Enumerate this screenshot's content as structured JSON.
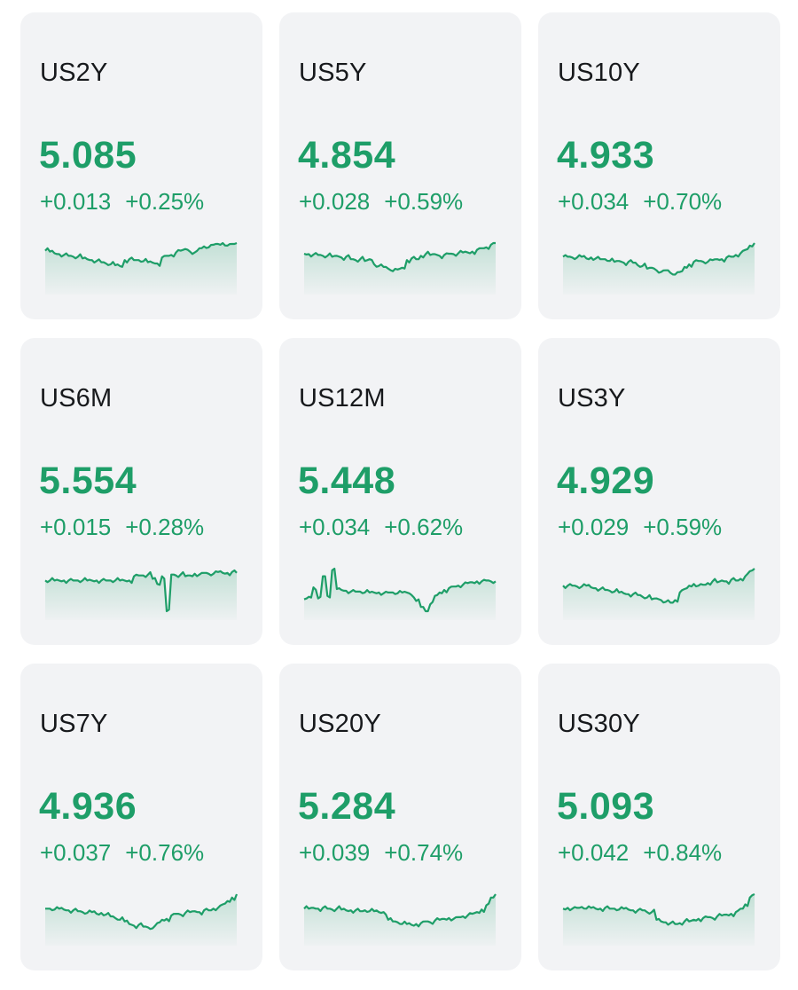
{
  "accent_color": "#1e9e68",
  "cards": [
    {
      "symbol": "US2Y",
      "price": "5.085",
      "change": "+0.013",
      "change_pct": "+0.25%",
      "spark": [
        0.82,
        0.8,
        0.76,
        0.74,
        0.72,
        0.7,
        0.68,
        0.68,
        0.64,
        0.62,
        0.6,
        0.58,
        0.55,
        0.52,
        0.5,
        0.48,
        0.46,
        0.6,
        0.62,
        0.6,
        0.6,
        0.57,
        0.55,
        0.54,
        0.52,
        0.66,
        0.7,
        0.72,
        0.78,
        0.82,
        0.86,
        0.8,
        0.78,
        0.88,
        0.92,
        0.9,
        0.96,
        0.98,
        1.0,
        0.94,
        0.98,
        1.0
      ]
    },
    {
      "symbol": "US5Y",
      "price": "4.854",
      "change": "+0.028",
      "change_pct": "+0.59%",
      "spark": [
        0.75,
        0.74,
        0.73,
        0.72,
        0.7,
        0.7,
        0.68,
        0.7,
        0.66,
        0.68,
        0.62,
        0.6,
        0.62,
        0.58,
        0.62,
        0.5,
        0.46,
        0.44,
        0.4,
        0.34,
        0.38,
        0.42,
        0.6,
        0.64,
        0.62,
        0.7,
        0.74,
        0.72,
        0.74,
        0.7,
        0.72,
        0.75,
        0.74,
        0.76,
        0.78,
        0.78,
        0.8,
        0.84,
        0.88,
        0.9,
        0.96,
        1.0
      ]
    },
    {
      "symbol": "US10Y",
      "price": "4.933",
      "change": "+0.034",
      "change_pct": "+0.70%",
      "spark": [
        0.68,
        0.68,
        0.66,
        0.66,
        0.68,
        0.64,
        0.66,
        0.64,
        0.62,
        0.62,
        0.58,
        0.56,
        0.58,
        0.54,
        0.56,
        0.54,
        0.48,
        0.46,
        0.4,
        0.42,
        0.36,
        0.32,
        0.36,
        0.3,
        0.26,
        0.32,
        0.44,
        0.5,
        0.56,
        0.58,
        0.56,
        0.56,
        0.6,
        0.62,
        0.62,
        0.66,
        0.68,
        0.72,
        0.76,
        0.84,
        0.94,
        1.0
      ]
    },
    {
      "symbol": "US6M",
      "price": "5.554",
      "change": "+0.015",
      "change_pct": "+0.28%",
      "spark": [
        0.72,
        0.72,
        0.72,
        0.72,
        0.72,
        0.72,
        0.72,
        0.72,
        0.72,
        0.72,
        0.72,
        0.72,
        0.72,
        0.72,
        0.72,
        0.72,
        0.72,
        0.72,
        0.72,
        0.82,
        0.84,
        0.84,
        0.86,
        0.76,
        0.64,
        0.82,
        0.0,
        0.86,
        0.84,
        0.86,
        0.82,
        0.84,
        0.88,
        0.86,
        0.9,
        0.88,
        0.88,
        0.92,
        0.9,
        0.9,
        0.92,
        0.9
      ]
    },
    {
      "symbol": "US12M",
      "price": "5.448",
      "change": "+0.034",
      "change_pct": "+0.62%",
      "spark": [
        0.28,
        0.34,
        0.56,
        0.3,
        0.82,
        0.36,
        0.96,
        0.52,
        0.5,
        0.48,
        0.46,
        0.46,
        0.46,
        0.44,
        0.44,
        0.44,
        0.44,
        0.42,
        0.44,
        0.44,
        0.42,
        0.44,
        0.44,
        0.38,
        0.24,
        0.1,
        0.0,
        0.16,
        0.36,
        0.44,
        0.5,
        0.54,
        0.58,
        0.6,
        0.62,
        0.66,
        0.68,
        0.7,
        0.7,
        0.72,
        0.7,
        0.7
      ]
    },
    {
      "symbol": "US3Y",
      "price": "4.929",
      "change": "+0.029",
      "change_pct": "+0.59%",
      "spark": [
        0.6,
        0.6,
        0.6,
        0.58,
        0.58,
        0.6,
        0.56,
        0.54,
        0.52,
        0.5,
        0.48,
        0.46,
        0.44,
        0.42,
        0.4,
        0.4,
        0.38,
        0.34,
        0.32,
        0.28,
        0.3,
        0.26,
        0.22,
        0.2,
        0.26,
        0.44,
        0.52,
        0.6,
        0.64,
        0.6,
        0.62,
        0.66,
        0.7,
        0.68,
        0.72,
        0.7,
        0.74,
        0.72,
        0.76,
        0.82,
        0.94,
        1.0
      ]
    },
    {
      "symbol": "US7Y",
      "price": "4.936",
      "change": "+0.037",
      "change_pct": "+0.76%",
      "spark": [
        0.66,
        0.66,
        0.64,
        0.66,
        0.64,
        0.62,
        0.62,
        0.6,
        0.58,
        0.56,
        0.58,
        0.54,
        0.56,
        0.52,
        0.48,
        0.44,
        0.4,
        0.36,
        0.3,
        0.26,
        0.28,
        0.24,
        0.22,
        0.2,
        0.32,
        0.4,
        0.42,
        0.5,
        0.54,
        0.52,
        0.56,
        0.58,
        0.6,
        0.58,
        0.62,
        0.62,
        0.66,
        0.68,
        0.76,
        0.84,
        0.92,
        1.0
      ]
    },
    {
      "symbol": "US20Y",
      "price": "5.284",
      "change": "+0.039",
      "change_pct": "+0.74%",
      "spark": [
        0.66,
        0.66,
        0.68,
        0.66,
        0.68,
        0.66,
        0.64,
        0.66,
        0.64,
        0.62,
        0.62,
        0.62,
        0.6,
        0.62,
        0.6,
        0.6,
        0.58,
        0.58,
        0.4,
        0.36,
        0.34,
        0.3,
        0.3,
        0.28,
        0.3,
        0.32,
        0.36,
        0.34,
        0.38,
        0.4,
        0.42,
        0.44,
        0.42,
        0.46,
        0.48,
        0.5,
        0.54,
        0.58,
        0.64,
        0.74,
        0.92,
        1.0
      ]
    },
    {
      "symbol": "US30Y",
      "price": "5.093",
      "change": "+0.042",
      "change_pct": "+0.84%",
      "spark": [
        0.66,
        0.68,
        0.66,
        0.68,
        0.7,
        0.66,
        0.68,
        0.66,
        0.66,
        0.68,
        0.66,
        0.66,
        0.64,
        0.66,
        0.64,
        0.62,
        0.62,
        0.62,
        0.58,
        0.58,
        0.4,
        0.36,
        0.34,
        0.32,
        0.3,
        0.32,
        0.36,
        0.36,
        0.4,
        0.42,
        0.44,
        0.46,
        0.44,
        0.48,
        0.5,
        0.52,
        0.54,
        0.58,
        0.66,
        0.76,
        0.92,
        1.0
      ]
    }
  ]
}
